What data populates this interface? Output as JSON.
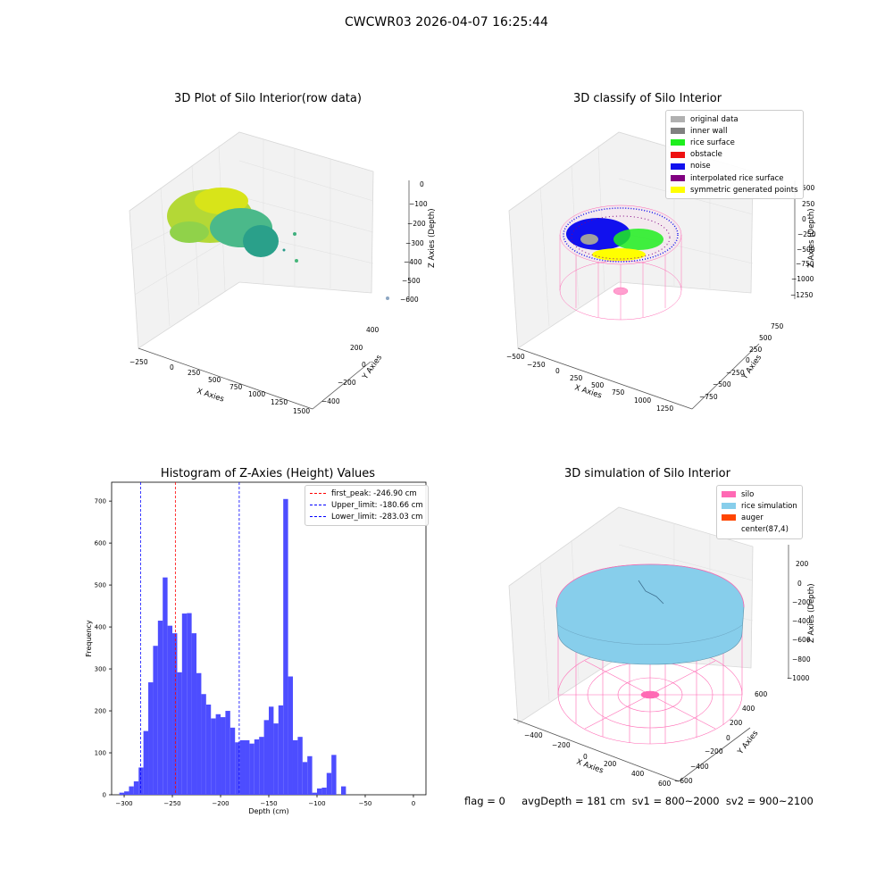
{
  "figure": {
    "suptitle": "CWCWR03 2026-04-07 16:25:44",
    "footer": "flag = 0     avgDepth = 181 cm  sv1 = 800~2000  sv2 = 900~2100"
  },
  "panels": {
    "raw": {
      "title": "3D Plot of Silo Interior(row data)",
      "xlabel": "X Axies",
      "ylabel": "Y Axies",
      "zlabel": "Z Axies (Depth)",
      "xticks": [
        "−250",
        "0",
        "250",
        "500",
        "750",
        "1000",
        "1250",
        "1500"
      ],
      "yticks": [
        "400",
        "200",
        "0",
        "−200",
        "−400"
      ],
      "zticks": [
        "0",
        "−100",
        "−200",
        "−300",
        "−400",
        "−500",
        "−600"
      ]
    },
    "classify": {
      "title": "3D classify of Silo Interior",
      "xlabel": "X Axies",
      "ylabel": "Y Axies",
      "zlabel": "Z Axies (Depth)",
      "xticks": [
        "−500",
        "−250",
        "0",
        "250",
        "500",
        "750",
        "1000",
        "1250"
      ],
      "yticks": [
        "750",
        "500",
        "250",
        "0",
        "−250",
        "−500",
        "−750"
      ],
      "zticks": [
        "500",
        "250",
        "0",
        "−250",
        "−500",
        "−750",
        "−1000",
        "−1250"
      ],
      "legend": [
        {
          "label": "original data",
          "color": "#b0b0b0"
        },
        {
          "label": "inner wall",
          "color": "#808080"
        },
        {
          "label": "rice surface",
          "color": "#1eee1e"
        },
        {
          "label": "obstacle",
          "color": "#ee1111"
        },
        {
          "label": "noise",
          "color": "#1111ee"
        },
        {
          "label": "interpolated rice surface",
          "color": "#800080"
        },
        {
          "label": "symmetric generated points",
          "color": "#ffff00"
        }
      ]
    },
    "simulation": {
      "title": "3D simulation of Silo Interior",
      "xlabel": "X Axies",
      "ylabel": "Y Axies",
      "zlabel": "Z Axies (Depth)",
      "xticks": [
        "−400",
        "−200",
        "0",
        "200",
        "400",
        "600"
      ],
      "yticks": [
        "600",
        "400",
        "200",
        "0",
        "−200",
        "−400",
        "−600"
      ],
      "zticks": [
        "200",
        "0",
        "−200",
        "−400",
        "−600",
        "−800",
        "−1000"
      ],
      "legend": [
        {
          "label": "silo",
          "color": "#ff69b4"
        },
        {
          "label": "rice simulation",
          "color": "#87ceeb"
        },
        {
          "label": "auger",
          "color": "#ff4500"
        },
        {
          "label": "center(87,4)",
          "color": ""
        }
      ]
    }
  },
  "chart_data": {
    "type": "bar",
    "title": "Histogram of Z-Axies (Height) Values",
    "xlabel": "Depth (cm)",
    "ylabel": "Frequency",
    "bar_color": "#4d4dff",
    "xlim": [
      -313,
      13
    ],
    "ylim": [
      0,
      745
    ],
    "xticks": [
      -300,
      -250,
      -200,
      -150,
      -100,
      -50,
      0
    ],
    "yticks": [
      0,
      100,
      200,
      300,
      400,
      500,
      600,
      700
    ],
    "bin_width": 5,
    "bins_start": -305,
    "values": [
      5,
      8,
      20,
      32,
      65,
      152,
      268,
      355,
      415,
      518,
      403,
      385,
      292,
      432,
      433,
      385,
      290,
      240,
      215,
      182,
      192,
      185,
      200,
      160,
      125,
      130,
      130,
      122,
      132,
      138,
      178,
      210,
      170,
      213,
      705,
      282,
      130,
      138,
      78,
      92,
      5,
      15,
      17,
      52,
      95,
      0,
      20
    ],
    "lines": [
      {
        "label": "first_peak: -246.90 cm",
        "x": -246.9,
        "color": "#ff0000"
      },
      {
        "label": "Upper_limit: -180.66 cm",
        "x": -180.66,
        "color": "#0000ff"
      },
      {
        "label": "Lower_limit: -283.03 cm",
        "x": -283.03,
        "color": "#0000ff"
      }
    ],
    "legend_position": "upper right"
  }
}
